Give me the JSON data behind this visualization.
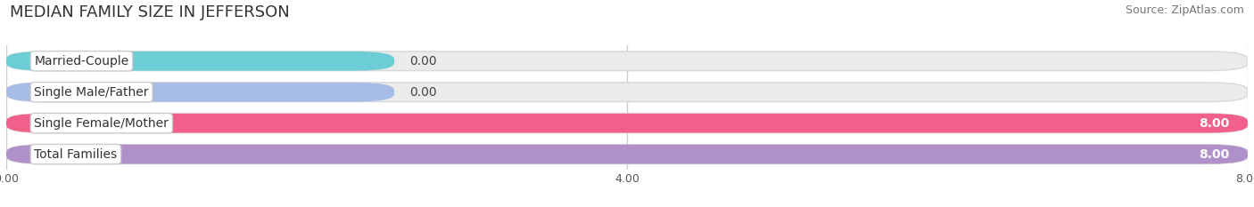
{
  "title": "MEDIAN FAMILY SIZE IN JEFFERSON",
  "source": "Source: ZipAtlas.com",
  "categories": [
    "Married-Couple",
    "Single Male/Father",
    "Single Female/Mother",
    "Total Families"
  ],
  "values": [
    0.0,
    0.0,
    8.0,
    8.0
  ],
  "bar_colors": [
    "#6dcdd6",
    "#a8bce8",
    "#f0608a",
    "#b090c8"
  ],
  "zero_stub_values": [
    2.5,
    2.5,
    0,
    0
  ],
  "xlim": [
    0,
    8.0
  ],
  "xticks": [
    0.0,
    4.0,
    8.0
  ],
  "xtick_labels": [
    "0.00",
    "4.00",
    "8.00"
  ],
  "background_color": "#ffffff",
  "bar_bg_color": "#ebebeb",
  "title_fontsize": 13,
  "source_fontsize": 9,
  "label_fontsize": 10,
  "value_fontsize": 10,
  "bar_height": 0.62,
  "bar_gap": 0.15,
  "label_bg_color": "#ffffff",
  "grid_color": "#cccccc"
}
